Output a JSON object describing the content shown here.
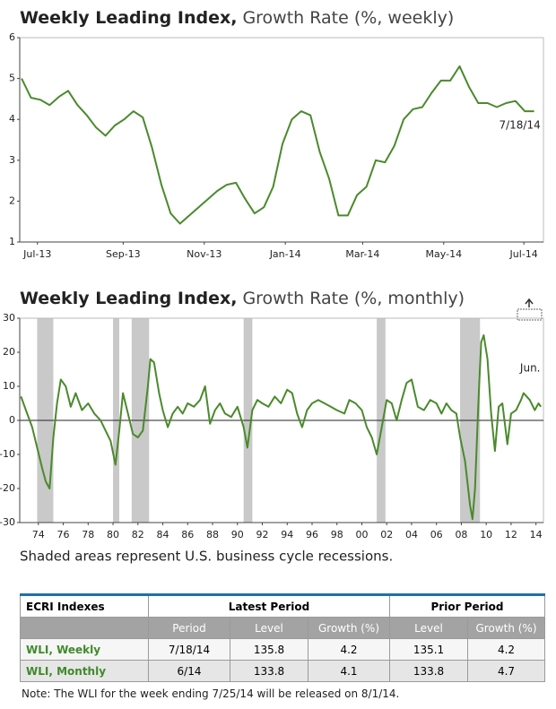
{
  "chart_data": [
    {
      "type": "line",
      "title": "Weekly Leading Index,",
      "subtitle": "Growth Rate (%, weekly)",
      "xlim": [
        -0.2,
        56
      ],
      "xticks": [
        {
          "value": 1.7,
          "label": "Jul-13"
        },
        {
          "value": 10.9,
          "label": "Sep-13"
        },
        {
          "value": 19.6,
          "label": "Nov-13"
        },
        {
          "value": 28.3,
          "label": "Jan-14"
        },
        {
          "value": 36.6,
          "label": "Mar-14"
        },
        {
          "value": 45.3,
          "label": "May-14"
        },
        {
          "value": 53.9,
          "label": "Jul-14"
        }
      ],
      "ylim": [
        1,
        6
      ],
      "yticks": [
        1,
        2,
        3,
        4,
        5,
        6
      ],
      "series": [
        {
          "color": "#4a8a2c",
          "values": [
            5.0,
            4.53,
            4.48,
            4.35,
            4.55,
            4.7,
            4.35,
            4.1,
            3.8,
            3.6,
            3.85,
            4.0,
            4.2,
            4.05,
            3.3,
            2.4,
            1.7,
            1.45,
            1.65,
            1.85,
            2.05,
            2.25,
            2.4,
            2.45,
            2.05,
            1.7,
            1.85,
            2.35,
            3.4,
            4.0,
            4.2,
            4.1,
            3.2,
            2.55,
            1.65,
            1.65,
            2.15,
            2.35,
            3.0,
            2.95,
            3.35,
            4.0,
            4.25,
            4.3,
            4.65,
            4.95,
            4.95,
            5.3,
            4.8,
            4.4,
            4.4,
            4.3,
            4.4,
            4.45,
            4.2,
            4.2
          ]
        }
      ],
      "annotation": "7/18/14"
    },
    {
      "type": "line",
      "title": "Weekly Leading Index,",
      "subtitle": "Growth Rate (%, monthly)",
      "xlim": [
        1972.5,
        2014.6
      ],
      "xticks": [
        {
          "value": 1974,
          "label": "74"
        },
        {
          "value": 1976,
          "label": "76"
        },
        {
          "value": 1978,
          "label": "78"
        },
        {
          "value": 1980,
          "label": "80"
        },
        {
          "value": 1982,
          "label": "82"
        },
        {
          "value": 1984,
          "label": "84"
        },
        {
          "value": 1986,
          "label": "86"
        },
        {
          "value": 1988,
          "label": "88"
        },
        {
          "value": 1990,
          "label": "90"
        },
        {
          "value": 1992,
          "label": "92"
        },
        {
          "value": 1994,
          "label": "94"
        },
        {
          "value": 1996,
          "label": "96"
        },
        {
          "value": 1998,
          "label": "98"
        },
        {
          "value": 2000,
          "label": "00"
        },
        {
          "value": 2002,
          "label": "02"
        },
        {
          "value": 2004,
          "label": "04"
        },
        {
          "value": 2006,
          "label": "06"
        },
        {
          "value": 2008,
          "label": "08"
        },
        {
          "value": 2010,
          "label": "10"
        },
        {
          "value": 2012,
          "label": "12"
        },
        {
          "value": 2014,
          "label": "14"
        }
      ],
      "ylim": [
        -30,
        30
      ],
      "yticks": [
        -30,
        -20,
        -10,
        0,
        10,
        20,
        30
      ],
      "zero_line": true,
      "recessions": [
        [
          1973.9,
          1975.2
        ],
        [
          1980.0,
          1980.5
        ],
        [
          1981.5,
          1982.9
        ],
        [
          1990.5,
          1991.2
        ],
        [
          2001.2,
          2001.9
        ],
        [
          2007.9,
          2009.5
        ]
      ],
      "series": [
        {
          "color": "#4a8a2c",
          "x": [
            1972.6,
            1973.0,
            1973.5,
            1973.9,
            1974.3,
            1974.6,
            1974.9,
            1975.2,
            1975.5,
            1975.8,
            1976.2,
            1976.6,
            1977.0,
            1977.5,
            1978.0,
            1978.5,
            1979.0,
            1979.4,
            1979.8,
            1980.2,
            1980.5,
            1980.8,
            1981.2,
            1981.6,
            1982.0,
            1982.4,
            1982.8,
            1983.0,
            1983.3,
            1983.7,
            1984.0,
            1984.4,
            1984.8,
            1985.2,
            1985.6,
            1986.0,
            1986.5,
            1987.0,
            1987.4,
            1987.8,
            1988.2,
            1988.6,
            1989.0,
            1989.5,
            1990.0,
            1990.5,
            1990.8,
            1991.2,
            1991.6,
            1992.0,
            1992.5,
            1993.0,
            1993.5,
            1994.0,
            1994.4,
            1994.8,
            1995.2,
            1995.6,
            1996.0,
            1996.5,
            1997.0,
            1997.5,
            1998.0,
            1998.6,
            1999.0,
            1999.5,
            2000.0,
            2000.4,
            2000.8,
            2001.2,
            2001.6,
            2002.0,
            2002.4,
            2002.8,
            2003.2,
            2003.6,
            2004.0,
            2004.5,
            2005.0,
            2005.5,
            2006.0,
            2006.4,
            2006.8,
            2007.2,
            2007.6,
            2007.9,
            2008.3,
            2008.7,
            2008.9,
            2009.1,
            2009.4,
            2009.6,
            2009.8,
            2010.1,
            2010.4,
            2010.7,
            2011.0,
            2011.3,
            2011.7,
            2012.0,
            2012.4,
            2012.8,
            2013.0,
            2013.5,
            2013.9,
            2014.2,
            2014.4
          ],
          "values": [
            7,
            3,
            -2,
            -8,
            -14,
            -18,
            -20,
            -5,
            5,
            12,
            10,
            4,
            8,
            3,
            5,
            2,
            0,
            -3,
            -6,
            -13,
            -3,
            8,
            2,
            -4,
            -5,
            -3,
            10,
            18,
            17,
            8,
            3,
            -2,
            2,
            4,
            2,
            5,
            4,
            6,
            10,
            -1,
            3,
            5,
            2,
            1,
            4,
            -2,
            -8,
            3,
            6,
            5,
            4,
            7,
            5,
            9,
            8,
            2,
            -2,
            3,
            5,
            6,
            5,
            4,
            3,
            2,
            6,
            5,
            3,
            -2,
            -5,
            -10,
            -2,
            6,
            5,
            0,
            6,
            11,
            12,
            4,
            3,
            6,
            5,
            2,
            5,
            3,
            2,
            -5,
            -12,
            -25,
            -29,
            -20,
            8,
            23,
            25,
            18,
            2,
            -9,
            4,
            5,
            -7,
            2,
            3,
            6,
            8,
            6,
            3,
            5,
            4
          ]
        }
      ],
      "annotation": "Jun.",
      "note": "Shaded areas represent U.S. business cycle recessions."
    }
  ],
  "table": {
    "header": [
      "ECRI Indexes",
      "Latest Period",
      "Prior Period"
    ],
    "subheader": [
      "Period",
      "Level",
      "Growth (%)",
      "Level",
      "Growth (%)"
    ],
    "rows": [
      [
        "WLI, Weekly",
        "7/18/14",
        "135.8",
        "4.2",
        "135.1",
        "4.2"
      ],
      [
        "WLI, Monthly",
        "6/14",
        "133.8",
        "4.1",
        "133.8",
        "4.7"
      ]
    ]
  },
  "note": "Note: The WLI for the week ending 7/25/14 will be released on 8/1/14."
}
